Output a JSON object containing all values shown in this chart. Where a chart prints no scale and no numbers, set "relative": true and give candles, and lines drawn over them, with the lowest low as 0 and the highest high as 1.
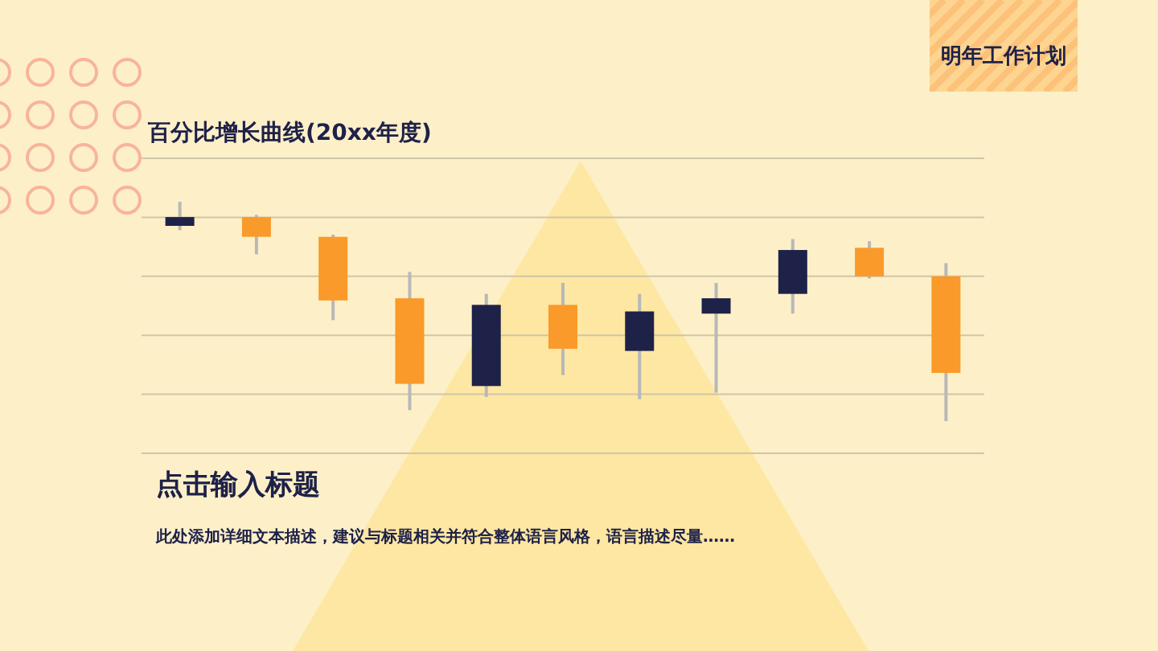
{
  "chart_data": {
    "type": "candlestick",
    "title": "百分比增长曲线(20xx年度)",
    "relative": true,
    "grid": true,
    "categories": [
      null,
      null,
      null,
      null,
      null,
      null,
      null,
      null,
      null,
      null,
      null
    ],
    "ohlc": [
      [
        0.89,
        1,
        0.87,
        0.93
      ],
      [
        0.93,
        0.94,
        0.76,
        0.84
      ],
      [
        0.84,
        0.85,
        0.46,
        0.55
      ],
      [
        0.56,
        0.68,
        0.05,
        0.17
      ],
      [
        0.16,
        0.58,
        0.11,
        0.53
      ],
      [
        0.53,
        0.63,
        0.21,
        0.33
      ],
      [
        0.32,
        0.58,
        0.1,
        0.5
      ],
      [
        0.49,
        0.63,
        0.13,
        0.56
      ],
      [
        0.58,
        0.83,
        0.49,
        0.78
      ],
      [
        0.79,
        0.82,
        0.65,
        0.66
      ],
      [
        0.66,
        0.72,
        0,
        0.22
      ]
    ],
    "colors": [
      "#1e2148",
      "#f99a2a",
      "#f99a2a",
      "#f99a2a",
      "#1e2148",
      "#f99a2a",
      "#1e2148",
      "#1e2148",
      "#1e2148",
      "#f99a2a",
      "#f99a2a"
    ],
    "annotations": [
      "明年工作计划",
      "点击输入标题",
      "此处添加详细文本描述，建议与标题相关并符合整体语言风格，语言描述尽量……"
    ]
  }
}
